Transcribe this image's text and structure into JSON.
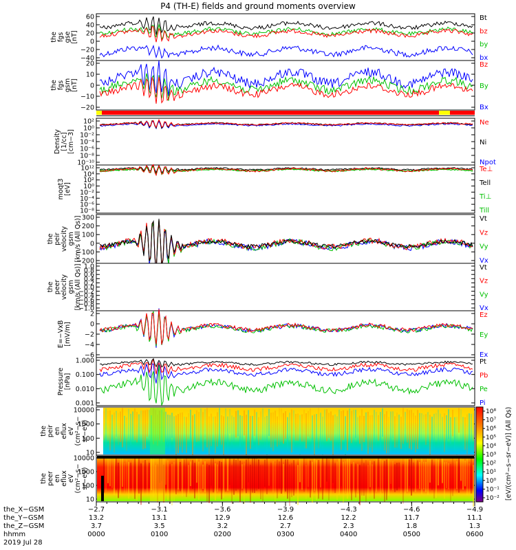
{
  "title": "P4 (TH-E) fields and ground moments overview",
  "chart_data": [
    {
      "type": "line",
      "ylabel": [
        "the",
        "fgs",
        "gse",
        "[nT]"
      ],
      "yticks": [
        "60",
        "40",
        "20",
        "0",
        "−20",
        "−40"
      ],
      "ylim": [
        -40,
        60
      ],
      "series": [
        {
          "name": "Bt",
          "color": "#000000",
          "level": 32
        },
        {
          "name": "bz",
          "color": "#ff0000",
          "level": 17
        },
        {
          "name": "by",
          "color": "#00c000",
          "level": 22
        },
        {
          "name": "bx",
          "color": "#0000ff",
          "level": -25
        }
      ]
    },
    {
      "type": "line",
      "ylabel": [
        "the",
        "fgs",
        "gsm",
        "[nT]"
      ],
      "yticks": [
        "20",
        "10",
        "0",
        "−10",
        "−20"
      ],
      "ylim": [
        -25,
        25
      ],
      "series": [
        {
          "name": "Bz",
          "color": "#ff0000",
          "level": -5
        },
        {
          "name": "By",
          "color": "#00c000",
          "level": 0
        },
        {
          "name": "Bx",
          "color": "#0000ff",
          "level": 10
        }
      ]
    },
    {
      "type": "line",
      "ylabel": [
        "Density",
        "[1/cc]",
        "[cm−3]"
      ],
      "yticks": [
        "10²",
        "10⁰",
        "10⁻²",
        "10⁻⁴",
        "10⁻⁶",
        "10⁻⁸",
        "10⁻¹⁰"
      ],
      "ylim": [
        "1e-10",
        "1e2"
      ],
      "log": true,
      "series": [
        {
          "name": "Ne",
          "color": "#ff0000"
        },
        {
          "name": "Ni",
          "color": "#000000"
        },
        {
          "name": "Npot",
          "color": "#0000ff"
        }
      ]
    },
    {
      "type": "line",
      "ylabel": [
        "moqt3",
        "[eV]"
      ],
      "yticks": [
        "10¹²",
        "10⁴",
        "10²",
        "10⁰",
        "10⁻²",
        "10⁻⁴",
        "10⁻⁶",
        "10⁻⁸"
      ],
      "log": true,
      "series": [
        {
          "name": "Te⊥",
          "color": "#ff0000"
        },
        {
          "name": "Tell",
          "color": "#000000"
        },
        {
          "name": "Ti⊥",
          "color": "#00c000"
        },
        {
          "name": "Till",
          "color": "#00c000"
        }
      ]
    },
    {
      "type": "line",
      "ylabel": [
        "the",
        "peir",
        "velocity",
        "gsm",
        "[km/s (All Qs)]"
      ],
      "yticks": [
        "300",
        "200",
        "100",
        "0",
        "−100",
        "−200"
      ],
      "ylim": [
        -200,
        300
      ],
      "series": [
        {
          "name": "Vt",
          "color": "#000000"
        },
        {
          "name": "Vz",
          "color": "#ff0000"
        },
        {
          "name": "Vy",
          "color": "#00c000"
        },
        {
          "name": "Vx",
          "color": "#0000ff"
        }
      ]
    },
    {
      "type": "line",
      "ylabel": [
        "the",
        "peer",
        "velocity",
        "gsm",
        "[km/s (All Qs)]"
      ],
      "yticks": [
        "1.0",
        "0.8",
        "0.6",
        "0.4",
        "0.2",
        "0.0",
        "−0.2",
        "−0.4",
        "−0.6",
        "−0.8",
        "−1.0"
      ],
      "ylim": [
        -1,
        1
      ],
      "series": [
        {
          "name": "Vt",
          "color": "#000000"
        },
        {
          "name": "Vz",
          "color": "#ff0000"
        },
        {
          "name": "Vy",
          "color": "#00c000"
        },
        {
          "name": "Vx",
          "color": "#0000ff"
        }
      ]
    },
    {
      "type": "line",
      "ylabel": [
        "E=−VxB",
        "[mV/m]"
      ],
      "yticks": [
        "2",
        "0",
        "−2",
        "−4",
        "−6"
      ],
      "ylim": [
        -7,
        3
      ],
      "series": [
        {
          "name": "Ez",
          "color": "#ff0000"
        },
        {
          "name": "Ey",
          "color": "#00c000"
        },
        {
          "name": "Ex",
          "color": "#0000ff"
        }
      ]
    },
    {
      "type": "line",
      "ylabel": [
        "Pressure",
        "[nPa]"
      ],
      "yticks": [
        "1.000",
        "0.100",
        "0.010",
        "0.001"
      ],
      "log": true,
      "series": [
        {
          "name": "Pt",
          "color": "#000000"
        },
        {
          "name": "Pb",
          "color": "#ff0000"
        },
        {
          "name": "Pe",
          "color": "#00c000"
        },
        {
          "name": "Pi",
          "color": "#0000ff"
        }
      ]
    },
    {
      "type": "heatmap",
      "ylabel": [
        "the",
        "peir",
        "en",
        "eflux",
        "eV",
        "(cm²−s−",
        "sr−eV)"
      ],
      "yticks": [
        "10000",
        "1000",
        "100",
        "10"
      ]
    },
    {
      "type": "heatmap",
      "ylabel": [
        "the",
        "peer",
        "en",
        "eflux",
        "eV",
        "(cm²−s−",
        "sr−eV)"
      ],
      "yticks": [
        "10000",
        "1000",
        "100",
        "10"
      ]
    }
  ],
  "colorbar": {
    "label": "[eV/(cm²−s−sr−eV)] (All Qs)",
    "ticks": [
      "10⁸",
      "10⁷",
      "10⁶",
      "10⁵",
      "10⁴",
      "10³",
      "10²",
      "10¹",
      "10⁰",
      "10⁻¹",
      "10⁻²"
    ]
  },
  "xaxis": {
    "row_labels": [
      "the_X−GSM",
      "the_Y−GSM",
      "the_Z−GSM",
      "hhmm",
      "2019 Jul 28"
    ],
    "x_gsm": [
      "−2.7",
      "−3.1",
      "−3.6",
      "−3.9",
      "−4.3",
      "−4.6",
      "−4.9"
    ],
    "y_gsm": [
      "13.2",
      "13.1",
      "12.9",
      "12.6",
      "12.2",
      "11.7",
      "11.1"
    ],
    "z_gsm": [
      "3.7",
      "3.5",
      "3.2",
      "2.7",
      "2.3",
      "1.8",
      "1.3"
    ],
    "hhmm": [
      "0000",
      "0100",
      "0200",
      "0300",
      "0400",
      "0500",
      "0600"
    ]
  },
  "colors": {
    "red": "#ff0000",
    "green": "#00c000",
    "blue": "#0000ff",
    "black": "#000000",
    "yellow": "#ffff00"
  }
}
